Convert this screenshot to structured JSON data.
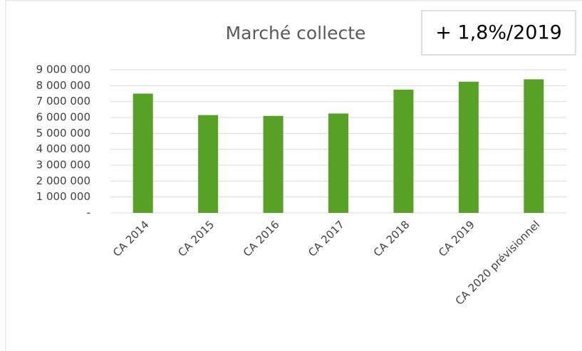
{
  "chart_data": {
    "type": "bar",
    "title": "Marché collecte",
    "annotation": "+ 1,8%/2019",
    "categories": [
      "CA 2014",
      "CA 2015",
      "CA 2016",
      "CA 2017",
      "CA 2018",
      "CA 2019",
      "CA 2020 prévisionnel"
    ],
    "values": [
      7500000,
      6150000,
      6100000,
      6250000,
      7750000,
      8250000,
      8400000
    ],
    "color": "#57a125",
    "ylim": [
      0,
      9000000
    ],
    "yticks": [
      {
        "value": 0,
        "label": "-"
      },
      {
        "value": 1000000,
        "label": "1 000 000"
      },
      {
        "value": 2000000,
        "label": "2 000 000"
      },
      {
        "value": 3000000,
        "label": "3 000 000"
      },
      {
        "value": 4000000,
        "label": "4 000 000"
      },
      {
        "value": 5000000,
        "label": "5 000 000"
      },
      {
        "value": 6000000,
        "label": "6 000 000"
      },
      {
        "value": 7000000,
        "label": "7 000 000"
      },
      {
        "value": 8000000,
        "label": "8 000 000"
      },
      {
        "value": 9000000,
        "label": "9 000 000"
      }
    ],
    "grid": true
  }
}
